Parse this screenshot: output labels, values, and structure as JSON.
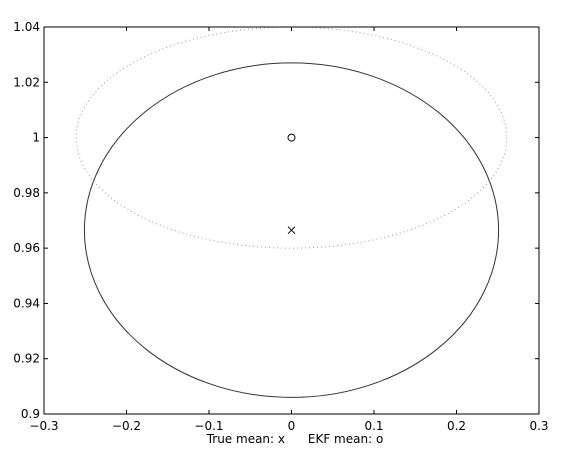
{
  "chart_data": {
    "type": "scatter",
    "title": "",
    "xlabel": "True mean: x      EKF mean: o",
    "ylabel": "",
    "xlim": [
      -0.3,
      0.3
    ],
    "ylim": [
      0.9,
      1.04
    ],
    "grid": false,
    "xticks": [
      -0.3,
      -0.2,
      -0.1,
      0,
      0.1,
      0.2,
      0.3
    ],
    "xtick_labels": [
      "−0.3",
      "−0.2",
      "−0.1",
      "0",
      "0.1",
      "0.2",
      "0.3"
    ],
    "yticks": [
      0.9,
      0.92,
      0.94,
      0.96,
      0.98,
      1,
      1.02,
      1.04
    ],
    "ytick_labels": [
      "0.9",
      "0.92",
      "0.94",
      "0.96",
      "0.98",
      "1",
      "1.02",
      "1.04"
    ],
    "points": [
      {
        "x": 0,
        "y": 0.9665,
        "marker": "x"
      },
      {
        "x": 0,
        "y": 1.0,
        "marker": "o"
      }
    ],
    "ellipses": [
      {
        "cx": 0,
        "cy": 0.9665,
        "rx": 0.251,
        "ry": 0.0605,
        "style": "solid"
      },
      {
        "cx": 0,
        "cy": 1.0,
        "rx": 0.261,
        "ry": 0.04,
        "style": "dotted"
      }
    ]
  }
}
